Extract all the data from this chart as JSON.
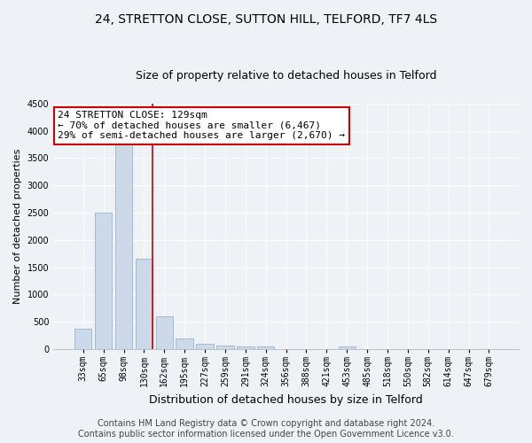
{
  "title1": "24, STRETTON CLOSE, SUTTON HILL, TELFORD, TF7 4LS",
  "title2": "Size of property relative to detached houses in Telford",
  "xlabel": "Distribution of detached houses by size in Telford",
  "ylabel": "Number of detached properties",
  "categories": [
    "33sqm",
    "65sqm",
    "98sqm",
    "130sqm",
    "162sqm",
    "195sqm",
    "227sqm",
    "259sqm",
    "291sqm",
    "324sqm",
    "356sqm",
    "388sqm",
    "421sqm",
    "453sqm",
    "485sqm",
    "518sqm",
    "550sqm",
    "582sqm",
    "614sqm",
    "647sqm",
    "679sqm"
  ],
  "values": [
    380,
    2500,
    3750,
    1650,
    600,
    200,
    100,
    60,
    55,
    55,
    0,
    0,
    0,
    55,
    0,
    0,
    0,
    0,
    0,
    0,
    0
  ],
  "bar_color": "#ccd9e8",
  "bar_edge_color": "#9ab4cc",
  "highlight_index": 3,
  "highlight_line_color": "#cc0000",
  "ylim": [
    0,
    4500
  ],
  "yticks": [
    0,
    500,
    1000,
    1500,
    2000,
    2500,
    3000,
    3500,
    4000,
    4500
  ],
  "annotation_line1": "24 STRETTON CLOSE: 129sqm",
  "annotation_line2": "← 70% of detached houses are smaller (6,467)",
  "annotation_line3": "29% of semi-detached houses are larger (2,670) →",
  "annotation_box_color": "#ffffff",
  "annotation_box_edge_color": "#cc0000",
  "footer1": "Contains HM Land Registry data © Crown copyright and database right 2024.",
  "footer2": "Contains public sector information licensed under the Open Government Licence v3.0.",
  "background_color": "#eef2f7",
  "plot_bg_color": "#eef2f7",
  "title1_fontsize": 10,
  "title2_fontsize": 9,
  "xlabel_fontsize": 9,
  "ylabel_fontsize": 8,
  "tick_fontsize": 7,
  "annotation_fontsize": 8,
  "footer_fontsize": 7
}
